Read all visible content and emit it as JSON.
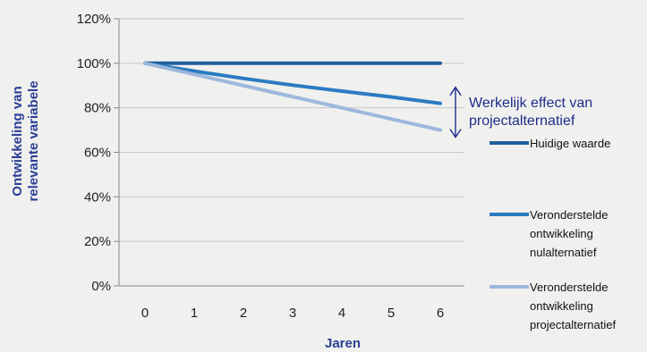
{
  "chart_data": {
    "type": "line",
    "title": "",
    "xlabel": "Jaren",
    "ylabel_lines": [
      "Ontwikkeling van",
      "relevante variabele"
    ],
    "x": [
      0,
      1,
      2,
      3,
      4,
      5,
      6
    ],
    "ylim": [
      0,
      120
    ],
    "yticks": [
      0,
      20,
      40,
      60,
      80,
      100,
      120
    ],
    "ytick_labels": [
      "0%",
      "20%",
      "40%",
      "60%",
      "80%",
      "100%",
      "120%"
    ],
    "grid": true,
    "legend_position": "right",
    "series": [
      {
        "name_lines": [
          "Huidige waarde"
        ],
        "color": "#1f5f9a",
        "x": [
          0,
          6
        ],
        "values": [
          100,
          100
        ]
      },
      {
        "name_lines": [
          "Veronderstelde",
          "ontwikkeling",
          "nulalternatief"
        ],
        "color": "#2a7bc1",
        "x": [
          0,
          1,
          2,
          3,
          4,
          5,
          6
        ],
        "values": [
          100,
          96.5,
          93.2,
          90.2,
          87.5,
          84.9,
          82
        ]
      },
      {
        "name_lines": [
          "Veronderstelde",
          "ontwikkeling",
          "projectalternatief"
        ],
        "color": "#9db8dc",
        "x": [
          0,
          6
        ],
        "values": [
          100,
          70
        ]
      }
    ],
    "annotation": {
      "lines": [
        "Werkelijk effect van",
        "projectalternatief"
      ],
      "x": 6,
      "from": 82,
      "to": 70,
      "color": "#1f2c8a"
    }
  }
}
